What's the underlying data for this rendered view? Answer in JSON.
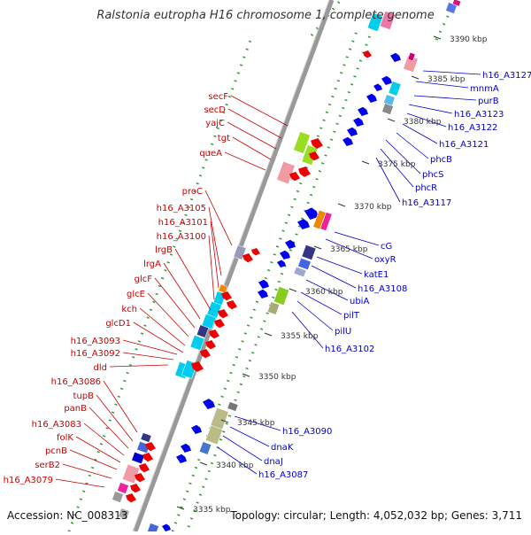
{
  "title": "Ralstonia eutropha H16 chromosome 1, complete genome",
  "footer": {
    "accession": "Accession: NC_008313",
    "topology": "Topology: circular; Length: 4,052,032 bp; Genes: 3,711"
  },
  "colors": {
    "reverse_strand_label": "#cc0000",
    "forward_strand_label": "#0000cc",
    "backbone": "#999999",
    "tick": "#339933"
  },
  "kbp_ticks": [
    "3390 kbp",
    "3385 kbp",
    "3380 kbp",
    "3375 kbp",
    "3370 kbp",
    "3365 kbp",
    "3360 kbp",
    "3355 kbp",
    "3350 kbp",
    "3345 kbp",
    "3340 kbp",
    "3335 kbp"
  ],
  "left_genes": [
    "secF",
    "secD",
    "yajC",
    "tgt",
    "queA",
    "proC",
    "h16_A3105",
    "h16_A3101",
    "h16_A3100",
    "lrgB",
    "lrgA",
    "glcF",
    "glcE",
    "kch",
    "glcD1",
    "h16_A3093",
    "h16_A3092",
    "dld",
    "h16_A3086",
    "tupB",
    "panB",
    "h16_A3083",
    "folK",
    "pcnB",
    "serB2",
    "h16_A3079"
  ],
  "right_genes": [
    "h16_A3127",
    "mnmA",
    "purB",
    "h16_A3123",
    "h16_A3122",
    "h16_A3121",
    "phcB",
    "phcS",
    "phcR",
    "h16_A3117",
    "cG",
    "oxyR",
    "katE1",
    "h16_A3108",
    "ubiA",
    "pilT",
    "pilU",
    "h16_A3102",
    "h16_A3090",
    "dnaK",
    "dnaJ",
    "h16_A3087"
  ]
}
